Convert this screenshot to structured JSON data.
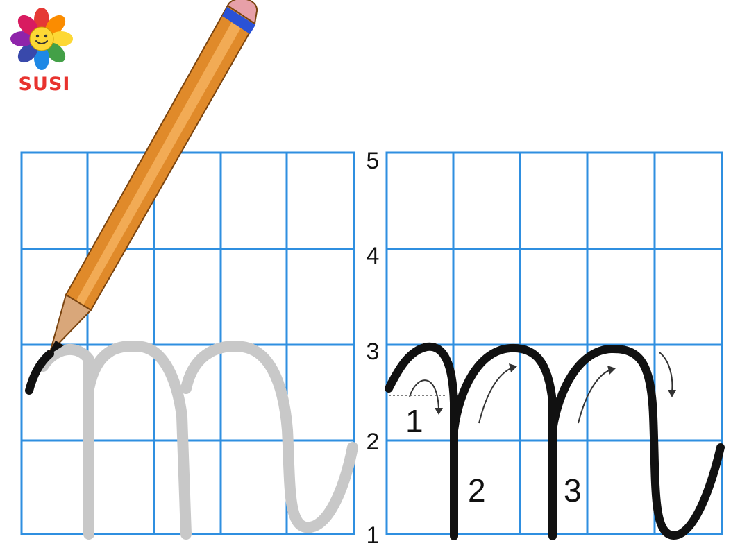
{
  "logo": {
    "letters": [
      "S",
      "U",
      "S",
      "I"
    ],
    "letter_colors": [
      "#e8322e",
      "#e8322e",
      "#e8322e",
      "#e8322e"
    ],
    "petal_colors": [
      "#e53935",
      "#fb8c00",
      "#fdd835",
      "#43a047",
      "#1e88e5",
      "#3949ab",
      "#8e24aa",
      "#d81b60"
    ],
    "center_color": "#fdd835"
  },
  "row_numbers": [
    "5",
    "4",
    "3",
    "2",
    "1"
  ],
  "stroke_numbers": [
    "1",
    "2",
    "3"
  ],
  "colors": {
    "grid_line": "#2f8fe0",
    "guide_letter": "#c8c8c8",
    "model_letter": "#111111",
    "pencil_body": "#e08a2a",
    "pencil_eraser": "#e7a0a8",
    "pencil_band": "#2a52d6"
  },
  "icons": [
    "pencil-icon",
    "direction-arrow-icon"
  ]
}
